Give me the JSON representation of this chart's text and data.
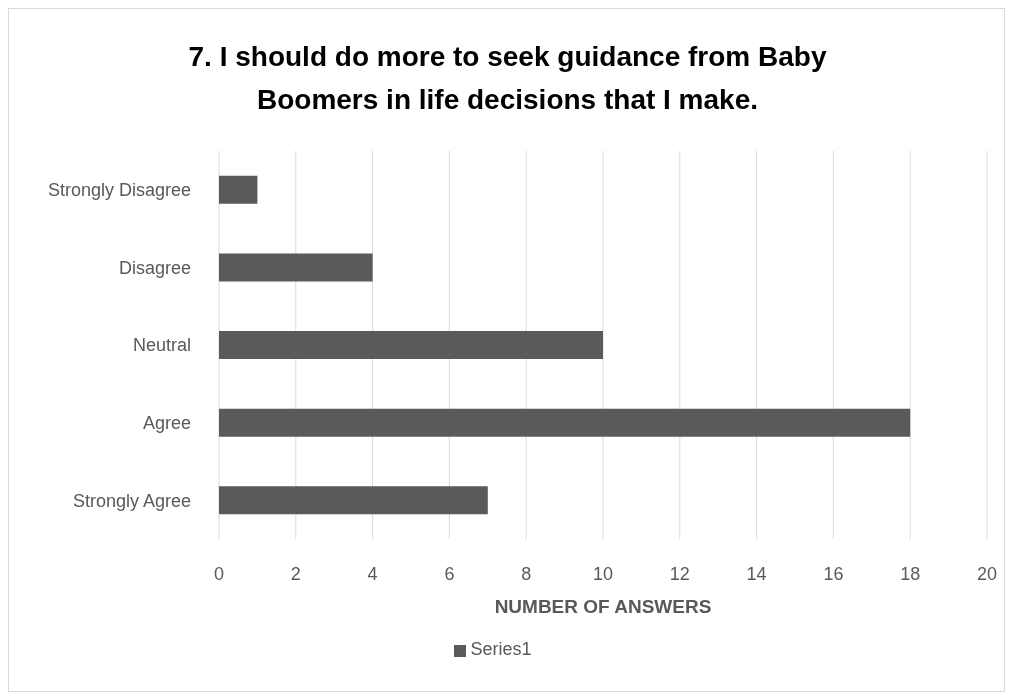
{
  "chart_data": {
    "type": "bar",
    "title": "7. I should do more to seek guidance from Baby Boomers in life decisions that I make.",
    "xlabel": "NUMBER OF ANSWERS",
    "categories": [
      "Strongly Disagree",
      "Disagree",
      "Neutral",
      "Agree",
      "Strongly Agree"
    ],
    "series": [
      {
        "name": "Series1",
        "color": "#5a5a5a",
        "values": [
          1,
          4,
          10,
          18,
          7
        ]
      }
    ],
    "orientation": "horizontal",
    "xlim": [
      0,
      20
    ],
    "xticks": [
      0,
      2,
      4,
      6,
      8,
      10,
      12,
      14,
      16,
      18,
      20
    ],
    "grid": "x",
    "legend": "bottom"
  }
}
